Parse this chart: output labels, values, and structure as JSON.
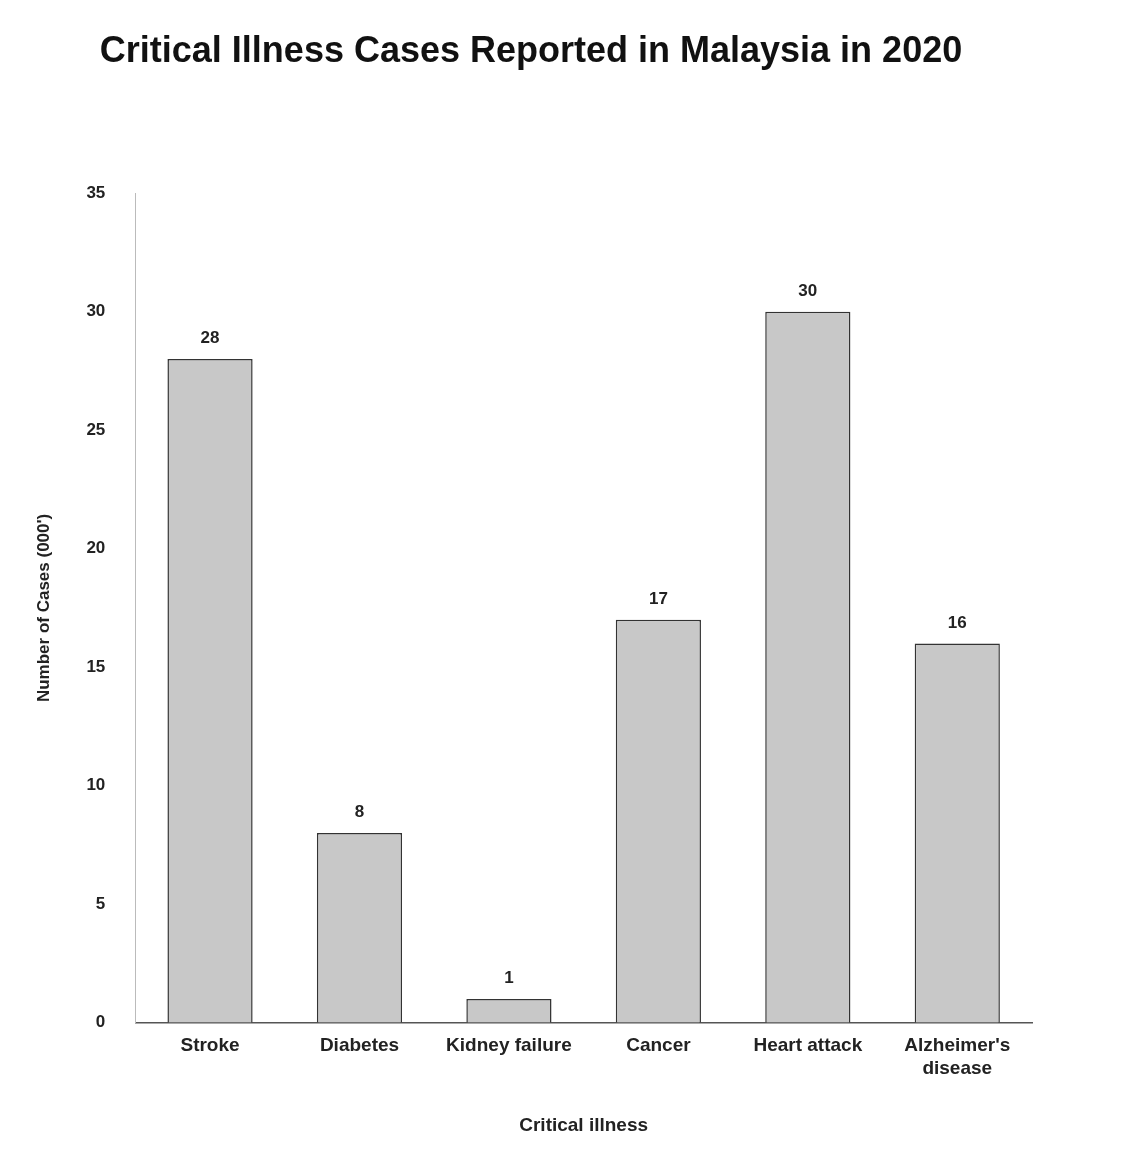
{
  "chart_data": {
    "type": "bar",
    "title": "Critical Illness Cases Reported in Malaysia in 2020",
    "xlabel": "Critical illness",
    "ylabel": "Number of Cases (000')",
    "categories": [
      "Stroke",
      "Diabetes",
      "Kidney failure",
      "Cancer",
      "Heart attack",
      "Alzheimer's disease"
    ],
    "values": [
      28,
      8,
      1,
      17,
      30,
      16
    ],
    "color": "#c8c8c8",
    "ylim": [
      0,
      35
    ],
    "yticks": [
      0,
      5,
      10,
      15,
      20,
      25,
      30,
      35
    ],
    "grid": false,
    "legend": false,
    "data_labels": true
  }
}
